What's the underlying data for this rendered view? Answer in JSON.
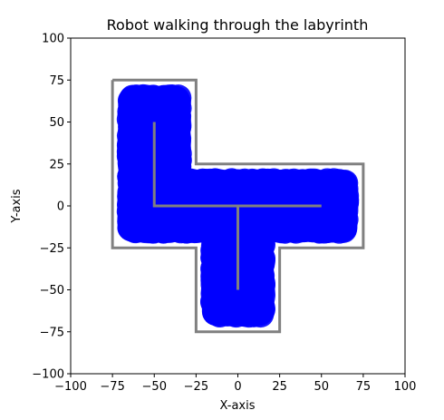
{
  "chart_data": {
    "type": "line",
    "title": "Robot walking through the labyrinth",
    "xlabel": "X-axis",
    "ylabel": "Y-axis",
    "xlim": [
      -100,
      100
    ],
    "ylim": [
      -100,
      100
    ],
    "xticks": [
      -100,
      -75,
      -50,
      -25,
      0,
      25,
      50,
      75,
      100
    ],
    "yticks": [
      -100,
      -75,
      -50,
      -25,
      0,
      25,
      50,
      75,
      100
    ],
    "grid": false,
    "legend": "none",
    "series": [
      {
        "role": "labyrinth-walls",
        "color": "#808080",
        "paths": [
          [
            [
              -75,
              75
            ],
            [
              -25,
              75
            ],
            [
              -25,
              25
            ],
            [
              75,
              25
            ],
            [
              75,
              -25
            ],
            [
              25,
              -25
            ],
            [
              25,
              -75
            ],
            [
              -25,
              -75
            ],
            [
              -25,
              -25
            ],
            [
              -75,
              -25
            ],
            [
              -75,
              75
            ]
          ],
          [
            [
              -50,
              50
            ],
            [
              -50,
              0
            ],
            [
              50,
              0
            ]
          ],
          [
            [
              0,
              0
            ],
            [
              0,
              -50
            ]
          ]
        ]
      },
      {
        "role": "robot-path",
        "color": "#0000ff",
        "paths": [
          [
            [
              -63,
              0
            ],
            [
              -63,
              63
            ],
            [
              -37,
              63
            ],
            [
              -37,
              13
            ],
            [
              63,
              13
            ],
            [
              63,
              -13
            ],
            [
              13,
              -13
            ],
            [
              13,
              -63
            ],
            [
              -13,
              -63
            ],
            [
              -13,
              -13
            ],
            [
              -63,
              -13
            ],
            [
              -63,
              0
            ]
          ],
          [
            [
              -50,
              50
            ],
            [
              -50,
              0
            ],
            [
              50,
              0
            ]
          ],
          [
            [
              0,
              0
            ],
            [
              0,
              -50
            ]
          ]
        ]
      }
    ]
  }
}
